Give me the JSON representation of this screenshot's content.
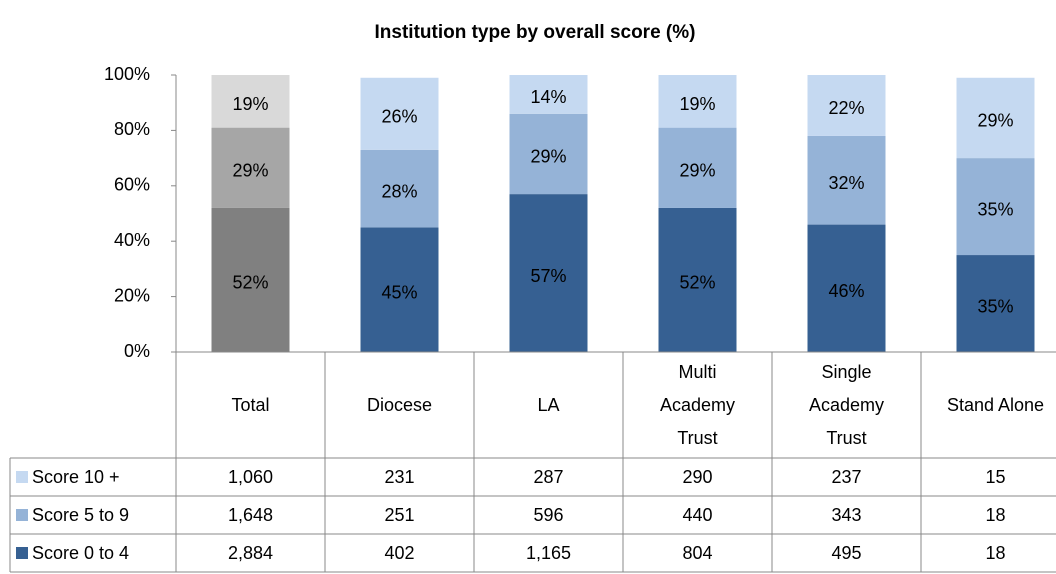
{
  "chart_data": {
    "type": "stacked_bar",
    "title": "Institution type by overall score (%)",
    "categories": [
      "Total",
      "Diocese",
      "LA",
      "Multi\nAcademy\nTrust",
      "Single\nAcademy\nTrust",
      "Stand Alone"
    ],
    "ylim": [
      0,
      100
    ],
    "yticks": [
      {
        "value": 0,
        "label": "0%"
      },
      {
        "value": 20,
        "label": "20%"
      },
      {
        "value": 40,
        "label": "40%"
      },
      {
        "value": 60,
        "label": "60%"
      },
      {
        "value": 80,
        "label": "80%"
      },
      {
        "value": 100,
        "label": "100%"
      }
    ],
    "series": [
      {
        "name": "Score 10 +",
        "color": "#c5d9f1",
        "colors": [
          "#d9d9d9",
          "#c5d9f1",
          "#c5d9f1",
          "#c5d9f1",
          "#c5d9f1",
          "#c5d9f1"
        ],
        "values": [
          19,
          26,
          14,
          19,
          22,
          29
        ],
        "value_labels": [
          "19%",
          "26%",
          "14%",
          "19%",
          "22%",
          "29%"
        ],
        "table": [
          "1,060",
          "231",
          "287",
          "290",
          "237",
          "15"
        ]
      },
      {
        "name": "Score 5 to 9",
        "color": "#95b3d7",
        "colors": [
          "#a6a6a6",
          "#95b3d7",
          "#95b3d7",
          "#95b3d7",
          "#95b3d7",
          "#95b3d7"
        ],
        "values": [
          29,
          28,
          29,
          29,
          32,
          35
        ],
        "value_labels": [
          "29%",
          "28%",
          "29%",
          "29%",
          "32%",
          "35%"
        ],
        "table": [
          "1,648",
          "251",
          "596",
          "440",
          "343",
          "18"
        ]
      },
      {
        "name": "Score 0 to 4",
        "color": "#366092",
        "colors": [
          "#808080",
          "#366092",
          "#366092",
          "#366092",
          "#366092",
          "#366092"
        ],
        "values": [
          52,
          45,
          57,
          52,
          46,
          35
        ],
        "value_labels": [
          "52%",
          "45%",
          "57%",
          "52%",
          "46%",
          "35%"
        ],
        "table": [
          "2,884",
          "402",
          "1,165",
          "804",
          "495",
          "18"
        ]
      }
    ]
  }
}
